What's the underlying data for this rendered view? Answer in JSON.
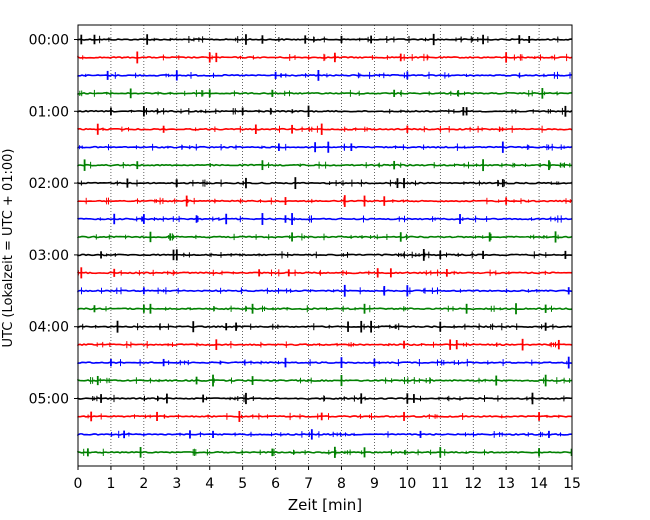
{
  "chart_data": {
    "type": "line",
    "title": "",
    "xlabel": "Zeit  [min]",
    "ylabel": "UTC (Lokalzeit = UTC + 01:00)",
    "xlim": [
      0,
      15
    ],
    "x_ticks": [
      0,
      1,
      2,
      3,
      4,
      5,
      6,
      7,
      8,
      9,
      10,
      11,
      12,
      13,
      14,
      15
    ],
    "x_tick_labels": [
      "0",
      "1",
      "2",
      "3",
      "4",
      "5",
      "6",
      "7",
      "8",
      "9",
      "10",
      "11",
      "12",
      "13",
      "14",
      "15"
    ],
    "y_tick_labels": [
      "00:00",
      "01:00",
      "02:00",
      "03:00",
      "04:00",
      "05:00"
    ],
    "rows_per_hour": 4,
    "row_minutes": 15,
    "line_colors": [
      "#000000",
      "#ff0000",
      "#0000ff",
      "#008000"
    ],
    "x_grid": true,
    "y_grid": false,
    "series": [
      {
        "row_start": "00:00",
        "color": "#000000",
        "spikes": [
          0.1,
          0.5,
          2.1,
          5.1,
          5.6,
          6.9,
          8.0,
          8.9,
          10.8,
          12.3,
          13.4,
          13.7
        ]
      },
      {
        "row_start": "00:15",
        "color": "#ff0000",
        "spikes": [
          1.8,
          4.0,
          4.2,
          7.8,
          9.8,
          13.0
        ]
      },
      {
        "row_start": "00:30",
        "color": "#0000ff",
        "spikes": [
          0.9,
          3.0,
          6.0,
          7.3,
          10.0
        ]
      },
      {
        "row_start": "00:45",
        "color": "#008000",
        "spikes": [
          1.6,
          4.0,
          5.9,
          9.6,
          14.1
        ]
      },
      {
        "row_start": "01:00",
        "color": "#000000",
        "spikes": [
          1.0,
          2.0,
          5.0,
          7.0,
          11.7,
          11.8,
          14.8
        ]
      },
      {
        "row_start": "01:15",
        "color": "#ff0000",
        "spikes": [
          0.6,
          2.6,
          5.4,
          6.5,
          7.4,
          10.0
        ]
      },
      {
        "row_start": "01:30",
        "color": "#0000ff",
        "spikes": [
          6.1,
          7.2,
          7.6,
          8.3,
          12.9
        ]
      },
      {
        "row_start": "01:45",
        "color": "#008000",
        "spikes": [
          0.2,
          1.8,
          5.6,
          9.6,
          12.3,
          14.3
        ]
      },
      {
        "row_start": "02:00",
        "color": "#000000",
        "spikes": [
          1.5,
          3.0,
          5.1,
          6.6,
          9.7,
          9.9,
          12.9
        ]
      },
      {
        "row_start": "02:15",
        "color": "#ff0000",
        "spikes": [
          3.3,
          6.3,
          8.1,
          8.7,
          9.3,
          13.0
        ]
      },
      {
        "row_start": "02:30",
        "color": "#0000ff",
        "spikes": [
          1.1,
          2.0,
          3.6,
          4.5,
          5.6,
          6.3,
          6.5,
          11.6
        ]
      },
      {
        "row_start": "02:45",
        "color": "#008000",
        "spikes": [
          2.2,
          2.8,
          6.5,
          9.8,
          12.5,
          14.5
        ]
      },
      {
        "row_start": "03:00",
        "color": "#000000",
        "spikes": [
          0.7,
          2.9,
          3.0,
          10.5,
          11.0,
          12.3,
          14.8
        ]
      },
      {
        "row_start": "03:15",
        "color": "#ff0000",
        "spikes": [
          0.1,
          1.1,
          5.5,
          6.4,
          9.1,
          9.5,
          11.2
        ]
      },
      {
        "row_start": "03:30",
        "color": "#0000ff",
        "spikes": [
          2.0,
          8.1,
          9.3,
          10.0,
          14.9
        ]
      },
      {
        "row_start": "03:45",
        "color": "#008000",
        "spikes": [
          0.5,
          2.0,
          2.2,
          5.3,
          8.7,
          11.8,
          13.3,
          14.2
        ]
      },
      {
        "row_start": "04:00",
        "color": "#000000",
        "spikes": [
          1.2,
          3.5,
          4.5,
          4.8,
          8.2,
          8.6,
          8.9,
          11.0,
          14.2
        ]
      },
      {
        "row_start": "04:15",
        "color": "#ff0000",
        "spikes": [
          4.2,
          9.9,
          11.3,
          11.5,
          13.5,
          14.6
        ]
      },
      {
        "row_start": "04:30",
        "color": "#0000ff",
        "spikes": [
          1.0,
          2.6,
          6.3,
          8.0,
          9.0,
          14.9
        ]
      },
      {
        "row_start": "04:45",
        "color": "#008000",
        "spikes": [
          0.6,
          3.6,
          4.1,
          5.3,
          8.0,
          12.7,
          14.2
        ]
      },
      {
        "row_start": "05:00",
        "color": "#000000",
        "spikes": [
          0.7,
          2.7,
          3.8,
          5.1,
          8.6,
          10.0,
          10.2,
          13.8
        ]
      },
      {
        "row_start": "05:15",
        "color": "#ff0000",
        "spikes": [
          0.4,
          2.4,
          4.9,
          7.4,
          9.9,
          14.0
        ]
      },
      {
        "row_start": "05:30",
        "color": "#0000ff",
        "spikes": [
          1.4,
          3.4,
          4.1,
          7.1,
          10.4,
          14.3
        ]
      },
      {
        "row_start": "05:45",
        "color": "#008000",
        "spikes": [
          0.3,
          1.9,
          5.9,
          7.8,
          8.7,
          11.0,
          14.0
        ]
      }
    ]
  }
}
